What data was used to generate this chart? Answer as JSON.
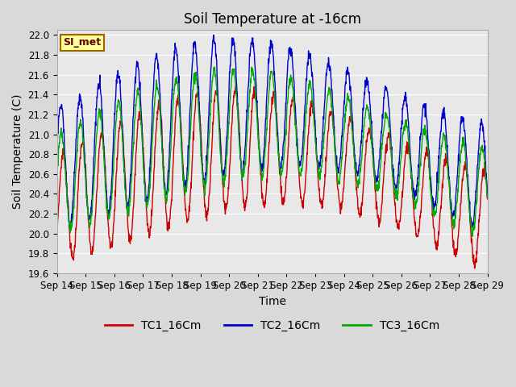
{
  "title": "Soil Temperature at -16cm",
  "xlabel": "Time",
  "ylabel": "Soil Temperature (C)",
  "ylim": [
    19.6,
    22.05
  ],
  "yticks": [
    19.6,
    19.8,
    20.0,
    20.2,
    20.4,
    20.6,
    20.8,
    21.0,
    21.2,
    21.4,
    21.6,
    21.8,
    22.0
  ],
  "xtick_labels": [
    "Sep 14",
    "Sep 15",
    "Sep 16",
    "Sep 17",
    "Sep 18",
    "Sep 19",
    "Sep 20",
    "Sep 21",
    "Sep 22",
    "Sep 23",
    "Sep 24",
    "Sep 25",
    "Sep 26",
    "Sep 27",
    "Sep 28",
    "Sep 29"
  ],
  "line_colors": [
    "#cc0000",
    "#0000cc",
    "#00aa00"
  ],
  "line_labels": [
    "TC1_16Cm",
    "TC2_16Cm",
    "TC3_16Cm"
  ],
  "fig_bg_color": "#d9d9d9",
  "plot_bg_color": "#e8e8e8",
  "grid_color": "#ffffff",
  "annotation_text": "SI_met",
  "annotation_bg": "#ffff99",
  "annotation_border": "#996600",
  "title_fontsize": 12,
  "axis_label_fontsize": 10,
  "tick_fontsize": 8.5,
  "legend_fontsize": 10
}
